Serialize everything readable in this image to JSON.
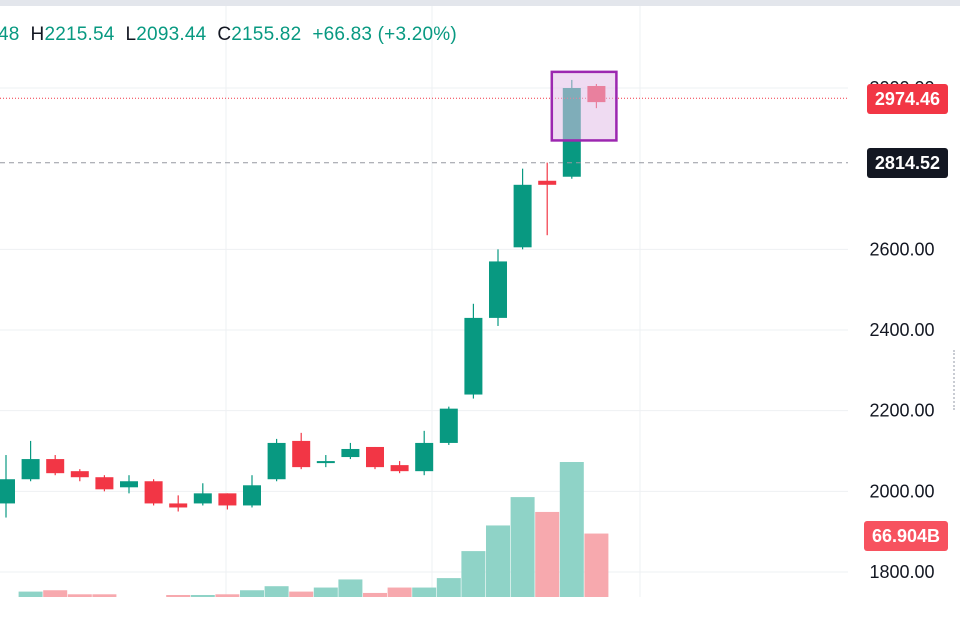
{
  "legend": {
    "open_fragment": "48",
    "high_key": "H",
    "high": "2215.54",
    "low_key": "L",
    "low": "2093.44",
    "close_key": "C",
    "close": "2155.82",
    "change": "+66.83",
    "change_pct": "(+3.20%)"
  },
  "badges": {
    "last_price": "2974.46",
    "crosshair_price": "2814.52",
    "volume": "66.904B"
  },
  "colors": {
    "up": "#089981",
    "down": "#f23645",
    "up_volume": "#8fd3c7",
    "down_volume": "#f7a9ae",
    "highlight_box": "#9c27b0",
    "highlight_fill": "#e1bee7"
  },
  "chart_data": {
    "type": "candlestick",
    "y_axis_ticks": [
      "1800.00",
      "2000.00",
      "2200.00",
      "2400.00",
      "2600.00",
      "3000.00"
    ],
    "ylim": [
      1740,
      3040
    ],
    "candles": [
      {
        "o": 1970,
        "h": 2090,
        "l": 1935,
        "c": 2030
      },
      {
        "o": 2030,
        "h": 2125,
        "l": 2025,
        "c": 2080
      },
      {
        "o": 2080,
        "h": 2090,
        "l": 2040,
        "c": 2045
      },
      {
        "o": 2050,
        "h": 2055,
        "l": 2025,
        "c": 2035
      },
      {
        "o": 2035,
        "h": 2040,
        "l": 2000,
        "c": 2005
      },
      {
        "o": 2010,
        "h": 2040,
        "l": 1995,
        "c": 2025
      },
      {
        "o": 2025,
        "h": 2030,
        "l": 1965,
        "c": 1970
      },
      {
        "o": 1970,
        "h": 1990,
        "l": 1950,
        "c": 1960
      },
      {
        "o": 1970,
        "h": 2020,
        "l": 1965,
        "c": 1995
      },
      {
        "o": 1995,
        "h": 1995,
        "l": 1955,
        "c": 1965
      },
      {
        "o": 1965,
        "h": 2040,
        "l": 1960,
        "c": 2015
      },
      {
        "o": 2030,
        "h": 2130,
        "l": 2025,
        "c": 2120
      },
      {
        "o": 2125,
        "h": 2145,
        "l": 2055,
        "c": 2060
      },
      {
        "o": 2070,
        "h": 2090,
        "l": 2060,
        "c": 2075
      },
      {
        "o": 2085,
        "h": 2120,
        "l": 2080,
        "c": 2105
      },
      {
        "o": 2110,
        "h": 2110,
        "l": 2055,
        "c": 2060
      },
      {
        "o": 2065,
        "h": 2075,
        "l": 2045,
        "c": 2050
      },
      {
        "o": 2050,
        "h": 2150,
        "l": 2040,
        "c": 2120
      },
      {
        "o": 2120,
        "h": 2210,
        "l": 2115,
        "c": 2205
      },
      {
        "o": 2240,
        "h": 2465,
        "l": 2230,
        "c": 2430
      },
      {
        "o": 2430,
        "h": 2600,
        "l": 2410,
        "c": 2570
      },
      {
        "o": 2605,
        "h": 2800,
        "l": 2600,
        "c": 2760
      },
      {
        "o": 2770,
        "h": 2815,
        "l": 2635,
        "c": 2760
      },
      {
        "o": 2780,
        "h": 3020,
        "l": 2775,
        "c": 3000
      },
      {
        "o": 3005,
        "h": 3010,
        "l": 2950,
        "c": 2965
      }
    ],
    "volume_relative": [
      0,
      0.04,
      0.05,
      0.02,
      0.02,
      0,
      0,
      0.01,
      0.01,
      0.02,
      0.05,
      0.08,
      0.04,
      0.07,
      0.13,
      0.03,
      0.07,
      0.07,
      0.14,
      0.34,
      0.53,
      0.74,
      0.63,
      1.0,
      0.47
    ],
    "highlight_range": {
      "from_index": 23,
      "to_index": 24,
      "low": 2870,
      "high": 3040
    }
  }
}
